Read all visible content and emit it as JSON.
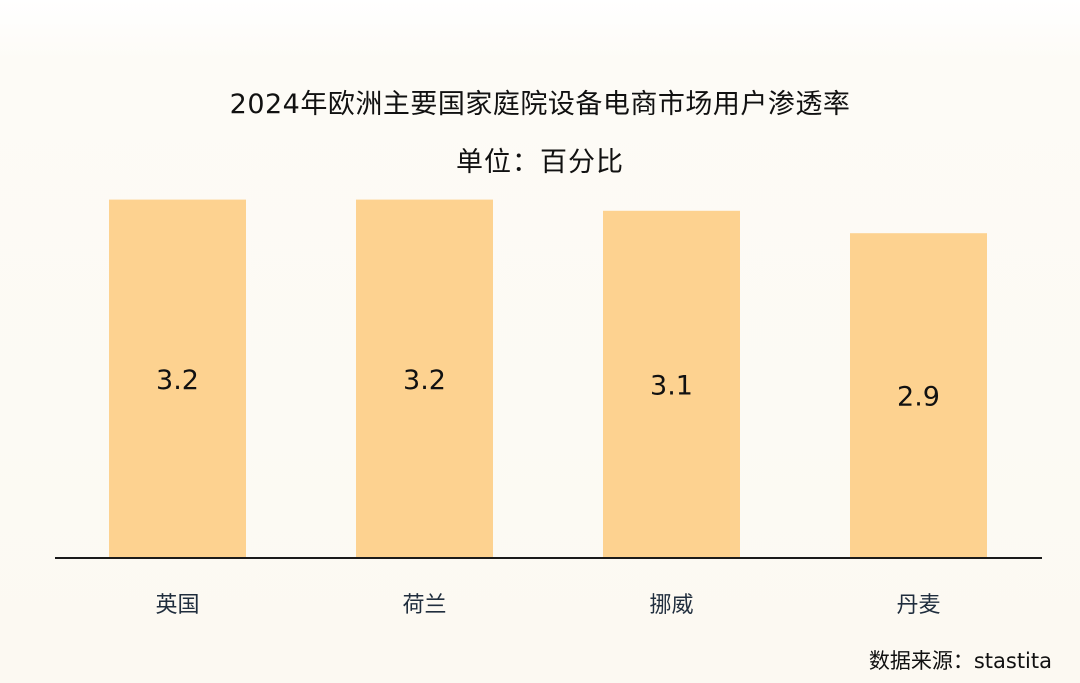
{
  "chart_data": {
    "type": "bar",
    "title": "2024年欧洲主要国家庭院设备电商市场用户渗透率",
    "subtitle": "单位：百分比",
    "categories": [
      "英国",
      "荷兰",
      "挪威",
      "丹麦"
    ],
    "values": [
      3.2,
      3.2,
      3.1,
      2.9
    ],
    "data_labels": [
      "3.2",
      "3.2",
      "3.1",
      "2.9"
    ],
    "xlabel": "",
    "ylabel": "",
    "grid": false,
    "legend": "none",
    "bar_color": "#fdd290",
    "axis_color": "#1a1a1a"
  },
  "source": "数据来源：stastita"
}
